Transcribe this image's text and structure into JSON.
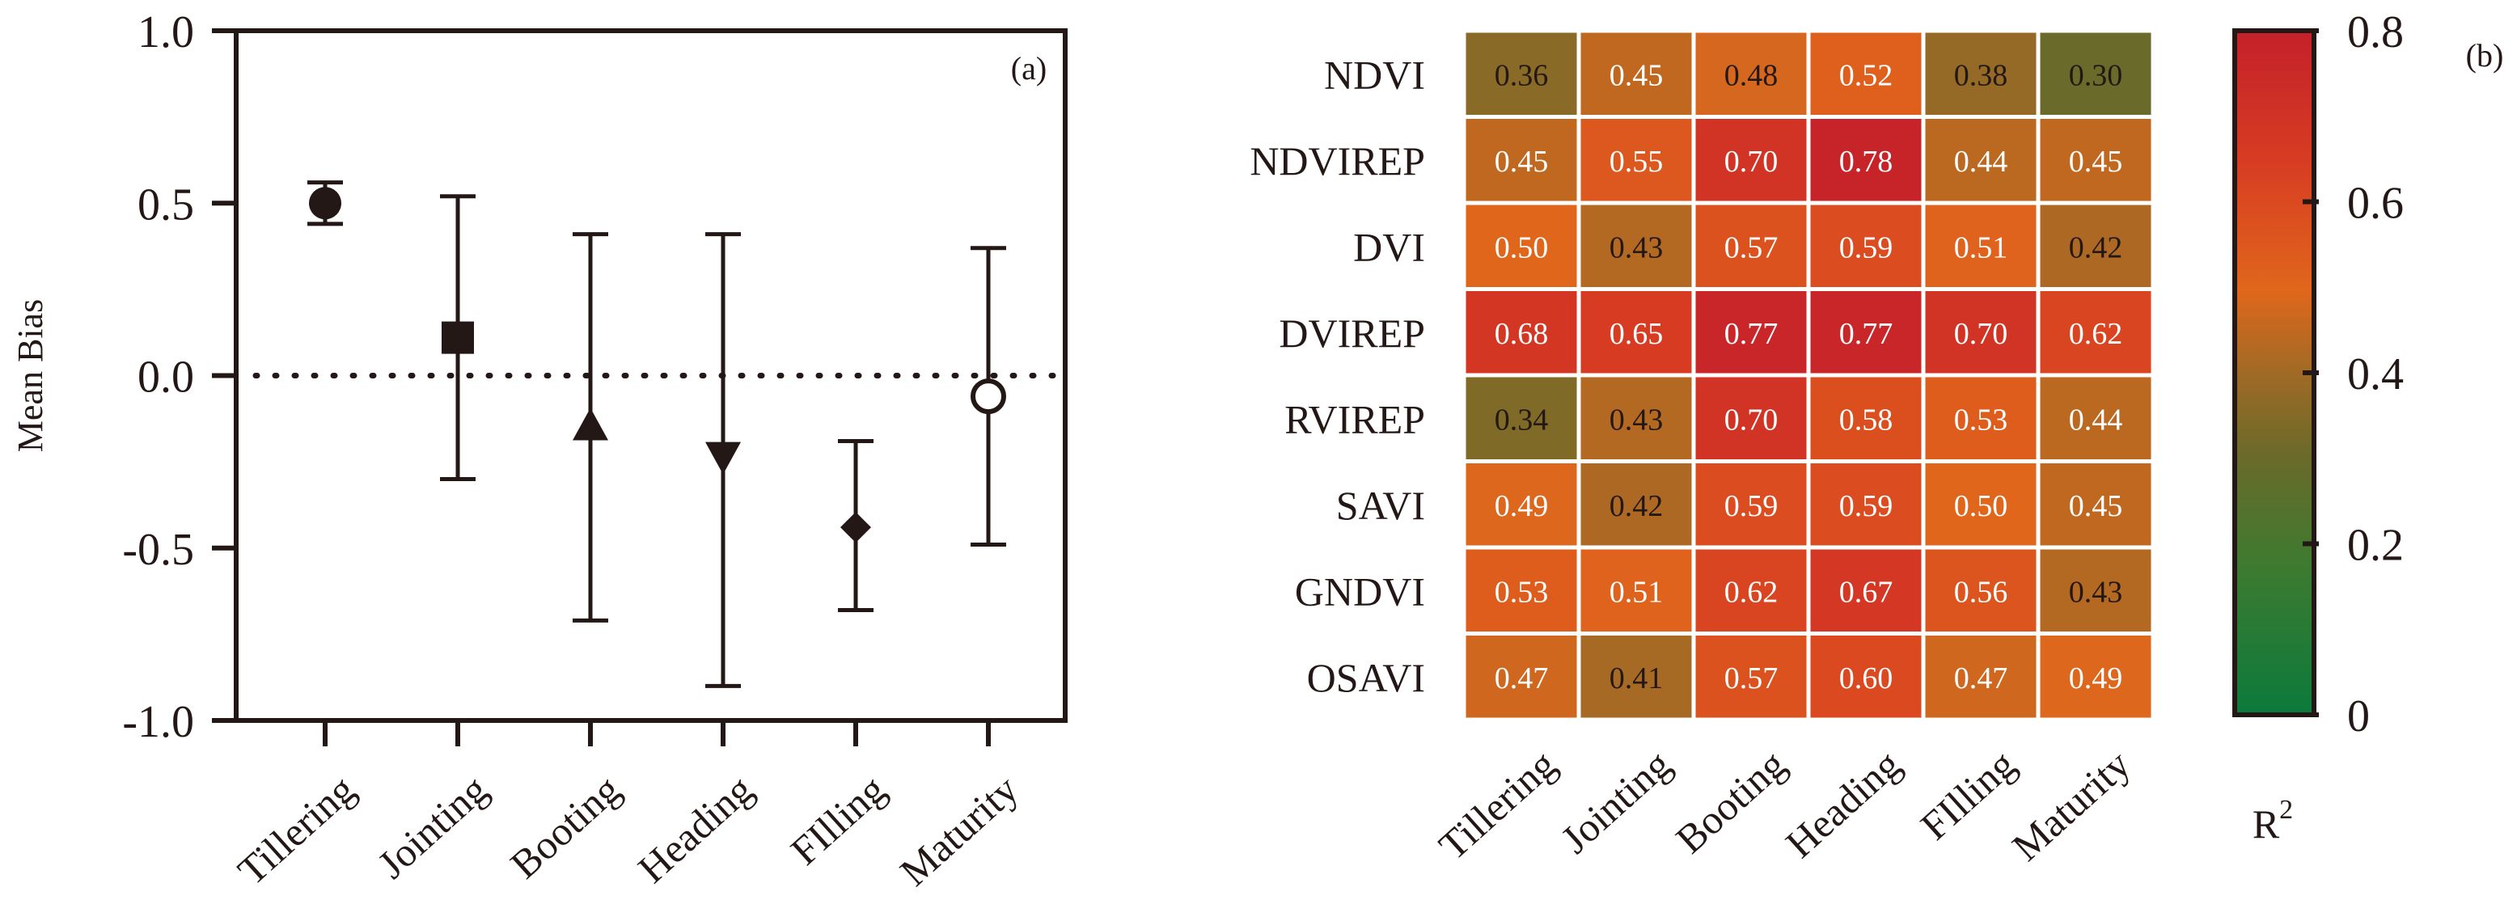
{
  "chart_data": [
    {
      "type": "scatter",
      "panel_label": "(a)",
      "ylabel": "Mean Bias",
      "ylim": [
        -1.0,
        1.0
      ],
      "yticks": [
        "1.0",
        "0.5",
        "0.0",
        "-0.5",
        "-1.0"
      ],
      "ytick_values": [
        1.0,
        0.5,
        0.0,
        -0.5,
        -1.0
      ],
      "categories": [
        "Tillering",
        "Jointing",
        "Booting",
        "Heading",
        "FIlling",
        "Maturity"
      ],
      "reference_line": {
        "y": 0.0,
        "style": "dotted"
      },
      "points": [
        {
          "category": "Tillering",
          "mean": 0.5,
          "low": 0.44,
          "high": 0.56,
          "marker": "circle-filled"
        },
        {
          "category": "Jointing",
          "mean": 0.11,
          "low": -0.3,
          "high": 0.52,
          "marker": "square"
        },
        {
          "category": "Booting",
          "mean": -0.15,
          "low": -0.71,
          "high": 0.41,
          "marker": "triangle-up"
        },
        {
          "category": "Heading",
          "mean": -0.23,
          "low": -0.9,
          "high": 0.41,
          "marker": "triangle-down"
        },
        {
          "category": "FIlling",
          "mean": -0.44,
          "low": -0.68,
          "high": -0.19,
          "marker": "diamond"
        },
        {
          "category": "Maturity",
          "mean": -0.06,
          "low": -0.49,
          "high": 0.37,
          "marker": "circle-open"
        }
      ],
      "color": "#231815"
    },
    {
      "type": "heatmap",
      "panel_label": "(b)",
      "rows": [
        "NDVI",
        "NDVIREP",
        "DVI",
        "DVIREP",
        "RVIREP",
        "SAVI",
        "GNDVI",
        "OSAVI"
      ],
      "columns": [
        "Tillering",
        "Jointing",
        "Booting",
        "Heading",
        "FIlling",
        "Maturity"
      ],
      "values": [
        [
          0.36,
          0.45,
          0.48,
          0.52,
          0.38,
          0.3
        ],
        [
          0.45,
          0.55,
          0.7,
          0.78,
          0.44,
          0.45
        ],
        [
          0.5,
          0.43,
          0.57,
          0.59,
          0.51,
          0.42
        ],
        [
          0.68,
          0.65,
          0.77,
          0.77,
          0.7,
          0.62
        ],
        [
          0.34,
          0.43,
          0.7,
          0.58,
          0.53,
          0.44
        ],
        [
          0.49,
          0.42,
          0.59,
          0.59,
          0.5,
          0.45
        ],
        [
          0.53,
          0.51,
          0.62,
          0.67,
          0.56,
          0.43
        ],
        [
          0.47,
          0.41,
          0.57,
          0.6,
          0.47,
          0.49
        ]
      ],
      "value_labels": [
        [
          "0.36",
          "0.45",
          "0.48",
          "0.52",
          "0.38",
          "0.30"
        ],
        [
          "0.45",
          "0.55",
          "0.70",
          "0.78",
          "0.44",
          "0.45"
        ],
        [
          "0.50",
          "0.43",
          "0.57",
          "0.59",
          "0.51",
          "0.42"
        ],
        [
          "0.68",
          "0.65",
          "0.77",
          "0.77",
          "0.70",
          "0.62"
        ],
        [
          "0.34",
          "0.43",
          "0.70",
          "0.58",
          "0.53",
          "0.44"
        ],
        [
          "0.49",
          "0.42",
          "0.59",
          "0.59",
          "0.50",
          "0.45"
        ],
        [
          "0.53",
          "0.51",
          "0.62",
          "0.67",
          "0.56",
          "0.43"
        ],
        [
          "0.47",
          "0.41",
          "0.57",
          "0.60",
          "0.47",
          "0.49"
        ]
      ],
      "colorbar": {
        "label_main": "R",
        "label_sup": "2",
        "range": [
          0,
          0.8
        ],
        "ticks": [
          "0.8",
          "0.6",
          "0.4",
          "0.2",
          "0"
        ],
        "tick_values": [
          0.8,
          0.6,
          0.4,
          0.2,
          0.0
        ],
        "colors": {
          "low": "#0b7a3c",
          "mid_low": "#6b6a2a",
          "mid": "#e0671c",
          "high": "#c4202a"
        }
      }
    }
  ]
}
